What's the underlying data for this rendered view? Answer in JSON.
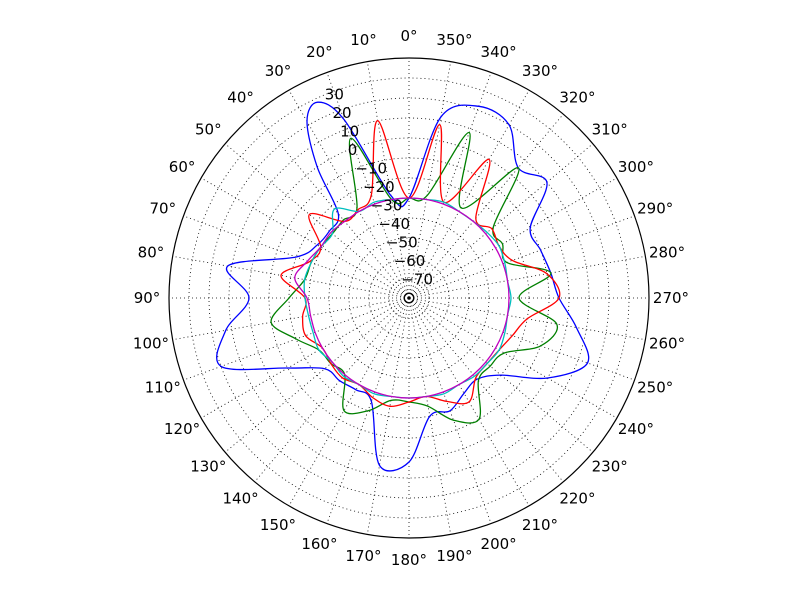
{
  "chart_data": {
    "type": "line",
    "projection": "polar",
    "theta_direction": "counterclockwise",
    "theta_zero_location": "top",
    "theta_ticks_deg": [
      0,
      10,
      20,
      30,
      40,
      50,
      60,
      70,
      80,
      90,
      100,
      110,
      120,
      130,
      140,
      150,
      160,
      170,
      180,
      190,
      200,
      210,
      220,
      230,
      240,
      250,
      260,
      270,
      280,
      290,
      300,
      310,
      320,
      330,
      340,
      350
    ],
    "theta_tick_labels": [
      "0°",
      "10°",
      "20°",
      "30°",
      "40°",
      "50°",
      "60°",
      "70°",
      "80°",
      "90°",
      "100°",
      "110°",
      "120°",
      "130°",
      "140°",
      "150°",
      "160°",
      "170°",
      "180°",
      "190°",
      "200°",
      "210°",
      "220°",
      "230°",
      "240°",
      "250°",
      "260°",
      "270°",
      "280°",
      "290°",
      "300°",
      "310°",
      "320°",
      "330°",
      "340°",
      "350°"
    ],
    "r_ticks": [
      -70,
      -60,
      -50,
      -40,
      -30,
      -20,
      -10,
      0,
      10,
      20,
      30
    ],
    "r_tick_labels": [
      "−70",
      "−60",
      "−50",
      "−40",
      "−30",
      "−20",
      "−10",
      "0",
      "10",
      "20",
      "30"
    ],
    "rlim": [
      -80,
      40
    ],
    "grid": true,
    "series": [
      {
        "color": "#0000ff",
        "theta": [
          0,
          10,
          20,
          25,
          30,
          35,
          40,
          50,
          60,
          70,
          80,
          90,
          100,
          110,
          120,
          130,
          140,
          150,
          160,
          170,
          180,
          190,
          200,
          210,
          220,
          230,
          240,
          250,
          260,
          270,
          280,
          290,
          300,
          310,
          320,
          330,
          340,
          350
        ],
        "r": [
          -30,
          -28,
          15,
          28,
          22,
          0,
          -25,
          -28,
          -27,
          -20,
          12,
          0,
          13,
          20,
          -10,
          -25,
          -26,
          -27,
          -25,
          5,
          2,
          -20,
          -20,
          -25,
          -27,
          -20,
          0,
          15,
          5,
          -5,
          -8,
          -10,
          -10,
          10,
          5,
          20,
          22,
          12
        ]
      },
      {
        "color": "#008000",
        "theta": [
          0,
          10,
          20,
          30,
          40,
          50,
          60,
          70,
          80,
          90,
          100,
          110,
          120,
          130,
          140,
          150,
          160,
          170,
          180,
          190,
          200,
          210,
          220,
          230,
          240,
          250,
          260,
          270,
          280,
          290,
          300,
          310,
          320,
          330,
          340,
          350
        ],
        "r": [
          -30,
          -30,
          5,
          -28,
          -29,
          -30,
          -29,
          -28,
          -27,
          -20,
          -10,
          -20,
          -28,
          -29,
          -30,
          -15,
          -20,
          -28,
          -28,
          -25,
          -15,
          -10,
          -26,
          -27,
          -25,
          -10,
          -5,
          -25,
          -8,
          -28,
          -26,
          -25,
          5,
          -28,
          8,
          -28
        ]
      },
      {
        "color": "#ff0000",
        "theta": [
          0,
          10,
          20,
          30,
          40,
          50,
          60,
          70,
          80,
          90,
          100,
          110,
          120,
          130,
          140,
          150,
          160,
          170,
          180,
          190,
          200,
          210,
          220,
          230,
          240,
          250,
          260,
          270,
          280,
          290,
          300,
          310,
          320,
          330,
          340,
          350
        ],
        "r": [
          -30,
          10,
          -25,
          -29,
          -30,
          -15,
          -29,
          -27,
          -15,
          -28,
          -26,
          -25,
          -30,
          -29,
          -28,
          -30,
          -27,
          -25,
          -28,
          -30,
          -25,
          -20,
          -28,
          -29,
          -28,
          -25,
          -20,
          -5,
          -10,
          -25,
          -28,
          -26,
          -28,
          0,
          -29,
          8
        ]
      },
      {
        "color": "#00bfbf",
        "theta": [
          0,
          10,
          20,
          30,
          40,
          50,
          60,
          70,
          80,
          90,
          100,
          110,
          120,
          130,
          140,
          150,
          160,
          170,
          180,
          190,
          200,
          210,
          220,
          230,
          240,
          250,
          260,
          270,
          280,
          290,
          300,
          310,
          320,
          330,
          340,
          350
        ],
        "r": [
          -30,
          -30,
          -29,
          -30,
          -22,
          -30,
          -29,
          -28,
          -27,
          -28,
          -29,
          -29,
          -28,
          -30,
          -29,
          -30,
          -29,
          -30,
          -30,
          -30,
          -29,
          -30,
          -29,
          -29,
          -28,
          -29,
          -30,
          -29,
          -30,
          -29,
          -28,
          -29,
          -30,
          -30,
          -29,
          -30
        ]
      },
      {
        "color": "#bf00bf",
        "theta": [
          0,
          10,
          20,
          30,
          40,
          50,
          60,
          70,
          80,
          90,
          100,
          110,
          120,
          130,
          140,
          150,
          160,
          170,
          180,
          190,
          200,
          210,
          220,
          230,
          240,
          250,
          260,
          270,
          280,
          290,
          300,
          310,
          320,
          330,
          340,
          350
        ],
        "r": [
          -30,
          -30,
          -30,
          -30,
          -30,
          -29,
          -29,
          -26,
          -22,
          -29,
          -30,
          -30,
          -30,
          -30,
          -30,
          -30,
          -30,
          -30,
          -30,
          -30,
          -30,
          -30,
          -30,
          -30,
          -30,
          -30,
          -30,
          -30,
          -30,
          -30,
          -30,
          -30,
          -30,
          -30,
          -30,
          -30
        ]
      }
    ]
  }
}
